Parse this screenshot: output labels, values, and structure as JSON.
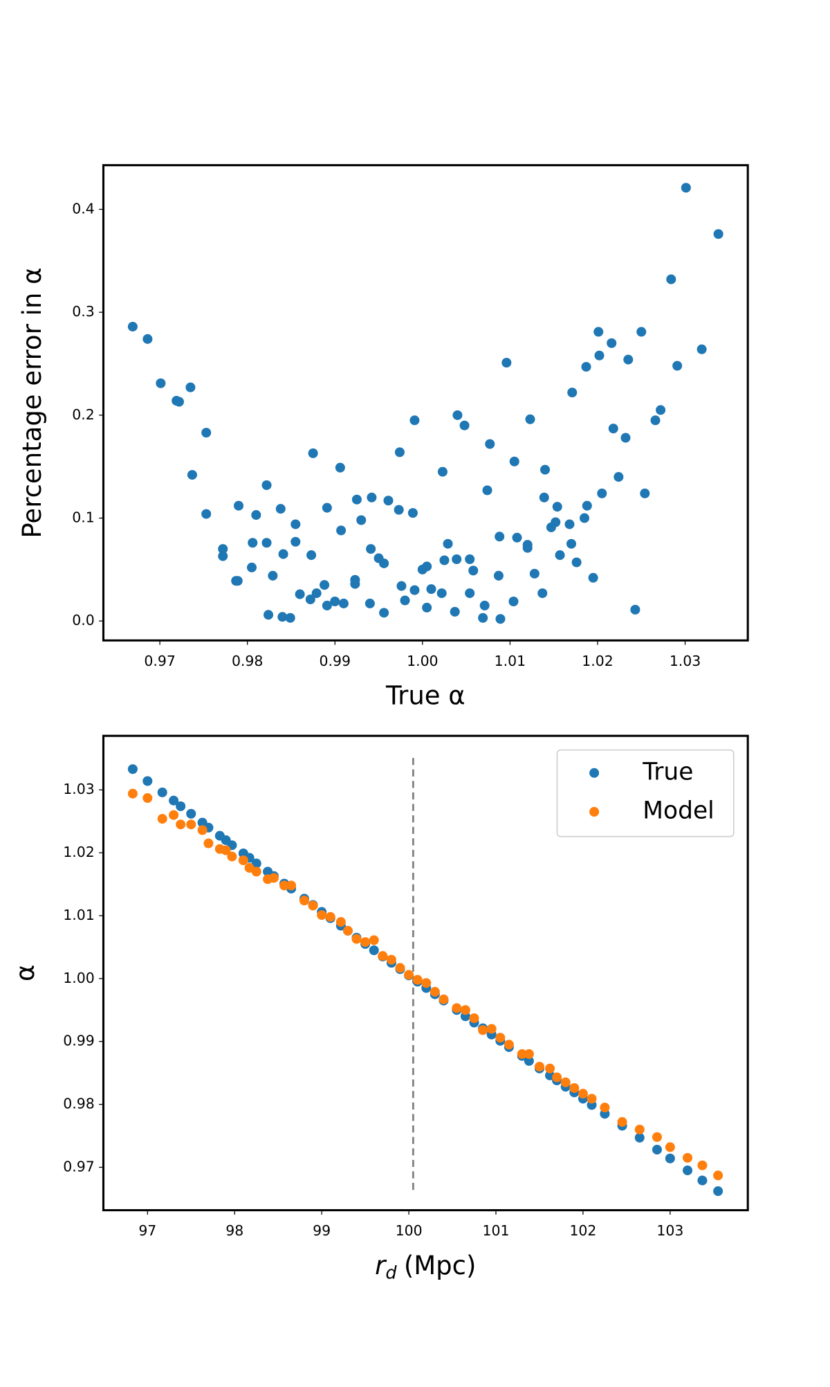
{
  "chart_data": [
    {
      "type": "scatter",
      "xlabel": "True α",
      "ylabel": "Percentage error in α",
      "color": "#1f77b4",
      "x": [
        0.9669,
        0.9686,
        0.9701,
        0.9719,
        0.9722,
        0.9735,
        0.9737,
        0.9753,
        0.9753,
        0.9772,
        0.9772,
        0.9787,
        0.9789,
        0.979,
        0.9805,
        0.9806,
        0.981,
        0.9822,
        0.9822,
        0.9824,
        0.9829,
        0.9838,
        0.984,
        0.9841,
        0.9849,
        0.9855,
        0.9855,
        0.986,
        0.9872,
        0.9873,
        0.9875,
        0.9879,
        0.9888,
        0.9891,
        0.9891,
        0.99,
        0.9906,
        0.9907,
        0.991,
        0.9923,
        0.9923,
        0.9925,
        0.993,
        0.994,
        0.9941,
        0.9942,
        0.995,
        0.9956,
        0.9956,
        0.9961,
        0.9973,
        0.9974,
        0.9976,
        0.998,
        0.9989,
        0.9991,
        0.9991,
        1.0,
        1.0005,
        1.0005,
        1.001,
        1.0022,
        1.0023,
        1.0025,
        1.0029,
        1.0037,
        1.0039,
        1.004,
        1.0048,
        1.0054,
        1.0054,
        1.0058,
        1.0069,
        1.0071,
        1.0074,
        1.0077,
        1.0087,
        1.0088,
        1.0089,
        1.0096,
        1.0104,
        1.0105,
        1.0108,
        1.012,
        1.012,
        1.0123,
        1.0128,
        1.0137,
        1.014,
        1.0139,
        1.0147,
        1.0152,
        1.0154,
        1.0157,
        1.0168,
        1.017,
        1.0171,
        1.0176,
        1.0185,
        1.0187,
        1.0188,
        1.0195,
        1.0201,
        1.0202,
        1.0205,
        1.0216,
        1.0218,
        1.0224,
        1.0232,
        1.0235,
        1.0243,
        1.025,
        1.0254,
        1.0266,
        1.0272,
        1.0284,
        1.0291,
        1.0301,
        1.0319,
        1.0338
      ],
      "values": [
        0.286,
        0.274,
        0.231,
        0.214,
        0.213,
        0.227,
        0.142,
        0.183,
        0.104,
        0.07,
        0.063,
        0.039,
        0.039,
        0.112,
        0.052,
        0.076,
        0.103,
        0.132,
        0.076,
        0.006,
        0.044,
        0.109,
        0.004,
        0.065,
        0.003,
        0.094,
        0.077,
        0.026,
        0.021,
        0.064,
        0.163,
        0.027,
        0.035,
        0.11,
        0.015,
        0.019,
        0.149,
        0.088,
        0.017,
        0.04,
        0.036,
        0.118,
        0.098,
        0.017,
        0.07,
        0.12,
        0.061,
        0.056,
        0.008,
        0.117,
        0.108,
        0.164,
        0.034,
        0.02,
        0.105,
        0.03,
        0.195,
        0.05,
        0.053,
        0.013,
        0.031,
        0.027,
        0.145,
        0.059,
        0.075,
        0.009,
        0.06,
        0.2,
        0.19,
        0.06,
        0.027,
        0.049,
        0.003,
        0.015,
        0.127,
        0.172,
        0.044,
        0.082,
        0.002,
        0.251,
        0.019,
        0.155,
        0.081,
        0.074,
        0.071,
        0.196,
        0.046,
        0.027,
        0.147,
        0.12,
        0.091,
        0.096,
        0.111,
        0.064,
        0.094,
        0.075,
        0.222,
        0.057,
        0.1,
        0.247,
        0.112,
        0.042,
        0.281,
        0.258,
        0.124,
        0.27,
        0.187,
        0.14,
        0.178,
        0.254,
        0.011,
        0.281,
        0.124,
        0.195,
        0.205,
        0.332,
        0.248,
        0.421,
        0.264,
        0.376
      ],
      "xlim": [
        0.96355,
        1.03716
      ],
      "ylim": [
        -0.0189,
        0.4429
      ],
      "xticks": [
        0.97,
        0.98,
        0.99,
        {
          "value": 1,
          "label": "1.00"
        },
        1.01,
        1.02,
        1.03
      ],
      "yticks": [
        {
          "value": 0,
          "label": "0.0"
        },
        0.1,
        0.2,
        0.3,
        0.4
      ]
    },
    {
      "type": "scatter",
      "xlabel": "r",
      "xlabel_subscript": "d",
      "xlabel_unit": "(Mpc)",
      "ylabel": "α",
      "x": [
        96.83,
        97.0,
        97.17,
        97.3,
        97.38,
        97.5,
        97.63,
        97.7,
        97.83,
        97.9,
        97.97,
        98.1,
        98.17,
        98.25,
        98.38,
        98.45,
        98.57,
        98.65,
        98.8,
        98.9,
        99.0,
        99.1,
        99.22,
        99.3,
        99.4,
        99.5,
        99.6,
        99.7,
        99.8,
        99.9,
        100.0,
        100.1,
        100.2,
        100.3,
        100.4,
        100.55,
        100.65,
        100.75,
        100.85,
        100.95,
        101.05,
        101.15,
        101.3,
        101.38,
        101.5,
        101.62,
        101.7,
        101.8,
        101.9,
        102.0,
        102.1,
        102.25,
        102.45,
        102.65,
        102.85,
        103.0,
        103.2,
        103.37,
        103.55
      ],
      "series": [
        {
          "name": "True",
          "color": "#1f77b4",
          "values": [
            1.0333,
            1.0314,
            1.0296,
            1.0283,
            1.0274,
            1.0262,
            1.0248,
            1.024,
            1.0227,
            1.022,
            1.0212,
            1.0199,
            1.0192,
            1.0183,
            1.017,
            1.0163,
            1.0151,
            1.0143,
            1.0127,
            1.0117,
            1.0106,
            1.0096,
            1.0084,
            1.0076,
            1.0065,
            1.0055,
            1.0045,
            1.0035,
            1.0025,
            1.0015,
            1.0005,
            0.9995,
            0.9985,
            0.9975,
            0.9965,
            0.995,
            0.994,
            0.993,
            0.9921,
            0.9911,
            0.9901,
            0.9891,
            0.9877,
            0.9869,
            0.9857,
            0.9846,
            0.9838,
            0.9828,
            0.9819,
            0.9809,
            0.9799,
            0.9785,
            0.9766,
            0.9747,
            0.9728,
            0.9714,
            0.9695,
            0.9679,
            0.9662
          ]
        },
        {
          "name": "Model",
          "color": "#ff7f0e",
          "values": [
            1.0294,
            1.0287,
            1.0254,
            1.026,
            1.0245,
            1.0245,
            1.0236,
            1.0215,
            1.0206,
            1.0204,
            1.0194,
            1.0188,
            1.0176,
            1.017,
            1.0158,
            1.016,
            1.0148,
            1.0148,
            1.0124,
            1.0116,
            1.0101,
            1.0098,
            1.009,
            1.0076,
            1.0063,
            1.0058,
            1.0061,
            1.0036,
            1.003,
            1.0017,
            1.0006,
            0.9998,
            0.9993,
            0.9979,
            0.9967,
            0.9953,
            0.995,
            0.9937,
            0.9918,
            0.992,
            0.9906,
            0.9895,
            0.988,
            0.988,
            0.986,
            0.9857,
            0.9843,
            0.9835,
            0.9826,
            0.9817,
            0.9809,
            0.9795,
            0.9772,
            0.976,
            0.9748,
            0.9732,
            0.9715,
            0.9703,
            0.9687
          ]
        }
      ],
      "vline": 100.05,
      "vline_color": "#808080",
      "legend": "upper right",
      "xlim": [
        96.493,
        103.892
      ],
      "ylim": [
        0.96317,
        1.03859
      ],
      "xticks": [
        97,
        98,
        99,
        100,
        101,
        102,
        103
      ],
      "yticks": [
        0.97,
        0.98,
        0.99,
        {
          "value": 1,
          "label": "1.00"
        },
        1.01,
        1.02,
        1.03
      ]
    }
  ]
}
